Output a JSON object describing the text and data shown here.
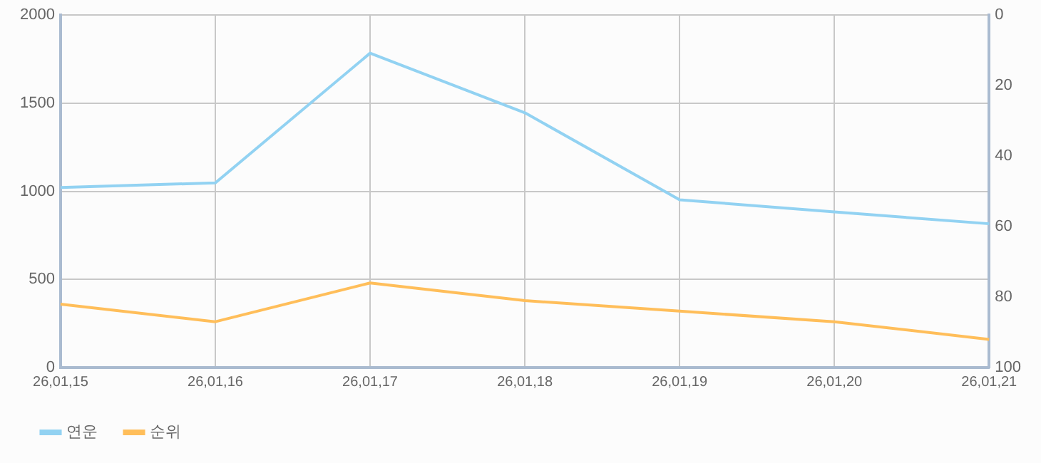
{
  "chart_data": {
    "type": "line",
    "categories": [
      "26,01,15",
      "26,01,16",
      "26,01,17",
      "26,01,18",
      "26,01,19",
      "26,01,20",
      "26,01,21"
    ],
    "series": [
      {
        "name": "연운",
        "color": "#92d2f2",
        "values": [
          1022,
          1048,
          1784,
          1446,
          952,
          883,
          816
        ]
      },
      {
        "name": "순위",
        "color": "#ffbe5a",
        "axis": "y2",
        "values": [
          82,
          87,
          76,
          81,
          84,
          87,
          92
        ]
      }
    ],
    "ylim": [
      0,
      2000
    ],
    "yticks": [
      0,
      500,
      1000,
      1500,
      2000
    ],
    "y2lim": [
      100,
      0
    ],
    "y2ticks": [
      0,
      20,
      40,
      60,
      80,
      100
    ],
    "grid": true,
    "legend": "bottom left",
    "marker": "none",
    "line_style": "solid"
  }
}
